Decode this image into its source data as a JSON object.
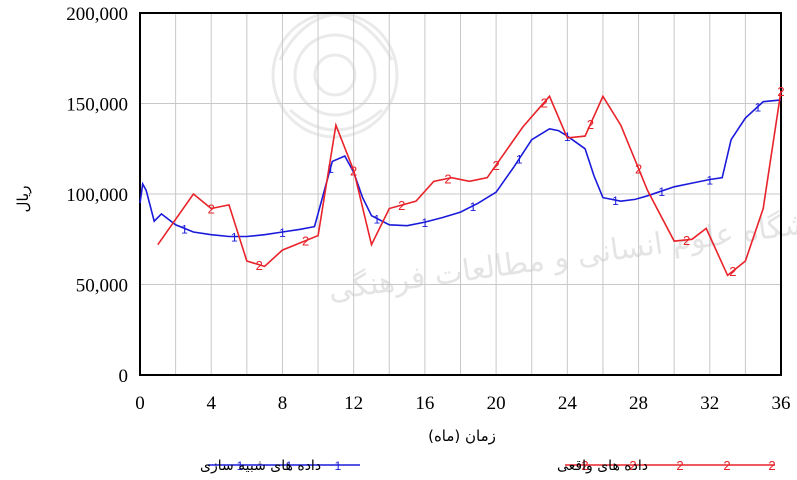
{
  "chart_data": {
    "type": "line",
    "xlabel": "زمان (ماه)",
    "ylabel": "ریال",
    "xlim": [
      0,
      36
    ],
    "ylim": [
      0,
      200000
    ],
    "x_ticks": [
      0,
      4,
      8,
      12,
      16,
      20,
      24,
      28,
      32,
      36
    ],
    "y_ticks": [
      0,
      50000,
      100000,
      150000,
      200000
    ],
    "y_tick_labels": [
      "0",
      "50,000",
      "100,000",
      "150,000",
      "200,000"
    ],
    "grid": true,
    "legend_position": "bottom",
    "series": [
      {
        "name": "داده های شبیه سازی",
        "marker": "1",
        "color": "#1a1adb",
        "points": [
          [
            0,
            95000
          ],
          [
            0.15,
            105500
          ],
          [
            0.35,
            102000
          ],
          [
            0.8,
            85000
          ],
          [
            1.2,
            89000
          ],
          [
            2,
            83000
          ],
          [
            3,
            79000
          ],
          [
            4,
            77500
          ],
          [
            5,
            76500
          ],
          [
            6,
            76500
          ],
          [
            7,
            77500
          ],
          [
            8,
            79000
          ],
          [
            9,
            80500
          ],
          [
            9.8,
            82000
          ],
          [
            10.3,
            100000
          ],
          [
            10.8,
            118000
          ],
          [
            11.5,
            121000
          ],
          [
            12,
            112000
          ],
          [
            12.5,
            98000
          ],
          [
            13,
            88000
          ],
          [
            14,
            83000
          ],
          [
            15,
            82500
          ],
          [
            16,
            84500
          ],
          [
            17,
            87000
          ],
          [
            18,
            90000
          ],
          [
            19,
            95000
          ],
          [
            20,
            101000
          ],
          [
            21,
            115000
          ],
          [
            22,
            130000
          ],
          [
            23,
            136000
          ],
          [
            23.5,
            135000
          ],
          [
            24,
            132000
          ],
          [
            25,
            125000
          ],
          [
            25.5,
            110000
          ],
          [
            26,
            98000
          ],
          [
            27,
            96000
          ],
          [
            27.8,
            97000
          ],
          [
            28.5,
            99000
          ],
          [
            30,
            104000
          ],
          [
            31,
            106000
          ],
          [
            32,
            108000
          ],
          [
            32.7,
            109000
          ],
          [
            33.2,
            130000
          ],
          [
            34,
            142000
          ],
          [
            35,
            151000
          ],
          [
            36,
            152000
          ]
        ],
        "marker_x": [
          2.5,
          5.3,
          8,
          10.7,
          13.3,
          16,
          18.7,
          21.3,
          24,
          26.7,
          29.3,
          32,
          34.7
        ]
      },
      {
        "name": "داده های واقعی",
        "marker": "2",
        "color": "#e8232a",
        "points": [
          [
            1,
            72000
          ],
          [
            3,
            100000
          ],
          [
            4,
            92000
          ],
          [
            5,
            94000
          ],
          [
            6,
            63000
          ],
          [
            7,
            60000
          ],
          [
            8,
            69000
          ],
          [
            10,
            77000
          ],
          [
            11,
            138000
          ],
          [
            12,
            113000
          ],
          [
            13,
            72000
          ],
          [
            14,
            92000
          ],
          [
            15.5,
            96000
          ],
          [
            16.5,
            107000
          ],
          [
            17.5,
            109000
          ],
          [
            18.5,
            107000
          ],
          [
            19.5,
            109000
          ],
          [
            21.5,
            137000
          ],
          [
            23,
            154000
          ],
          [
            24,
            131000
          ],
          [
            25,
            132000
          ],
          [
            26,
            154000
          ],
          [
            27,
            138000
          ],
          [
            28.5,
            102000
          ],
          [
            30,
            74000
          ],
          [
            31,
            75000
          ],
          [
            31.8,
            81000
          ],
          [
            33,
            55000
          ],
          [
            34,
            63000
          ],
          [
            35,
            92000
          ],
          [
            36,
            157000
          ]
        ],
        "marker_x": [
          4,
          6.7,
          9.3,
          12,
          14.7,
          17.3,
          20,
          22.7,
          25.3,
          28,
          30.7,
          33.3,
          36
        ]
      }
    ]
  }
}
